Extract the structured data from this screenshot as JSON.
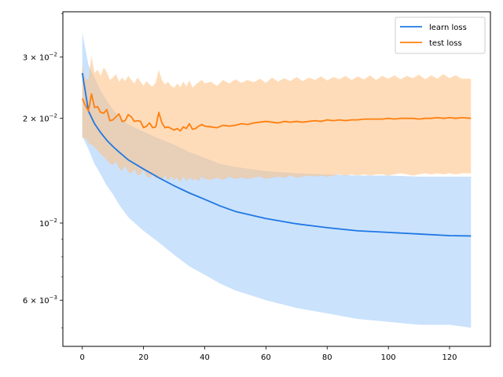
{
  "chart_data": {
    "type": "line",
    "title": "",
    "xlabel": "",
    "ylabel": "",
    "y_scale": "log",
    "xlim": [
      -6.35,
      133.35
    ],
    "ylim": [
      0.00442,
      0.0405
    ],
    "x_ticks": [
      0,
      20,
      40,
      60,
      80,
      100,
      120
    ],
    "x_tick_labels": [
      "0",
      "20",
      "40",
      "60",
      "80",
      "100",
      "120"
    ],
    "y_ticks": [
      0.006,
      0.01,
      0.02,
      0.03
    ],
    "y_tick_labels": [
      {
        "base": "6 × 10",
        "exp": "−3"
      },
      {
        "base": "10",
        "exp": "−2"
      },
      {
        "base": "2 × 10",
        "exp": "−2"
      },
      {
        "base": "3 × 10",
        "exp": "−2"
      }
    ],
    "grid": false,
    "legend_position": "top-right",
    "series": [
      {
        "name": "learn loss",
        "color": "#1f77e4",
        "band_color": "#9ecbfa",
        "x": [
          0,
          2,
          4,
          6,
          8,
          10,
          12,
          15,
          20,
          25,
          30,
          35,
          40,
          45,
          50,
          60,
          70,
          80,
          90,
          100,
          110,
          120,
          127
        ],
        "y": [
          0.027,
          0.021,
          0.0193,
          0.0182,
          0.0173,
          0.0166,
          0.016,
          0.0152,
          0.0143,
          0.0135,
          0.0128,
          0.0122,
          0.0117,
          0.0112,
          0.0108,
          0.0103,
          0.00995,
          0.0097,
          0.0095,
          0.0094,
          0.0093,
          0.0092,
          0.00918
        ],
        "lower": [
          0.0178,
          0.0163,
          0.0148,
          0.0138,
          0.0128,
          0.0121,
          0.0113,
          0.0104,
          0.0095,
          0.0088,
          0.0081,
          0.0075,
          0.0071,
          0.0067,
          0.0064,
          0.006,
          0.0057,
          0.0055,
          0.0053,
          0.0052,
          0.0051,
          0.0051,
          0.005
        ],
        "upper": [
          0.0352,
          0.0285,
          0.0262,
          0.024,
          0.0225,
          0.0212,
          0.0203,
          0.0192,
          0.0183,
          0.0175,
          0.0168,
          0.016,
          0.0154,
          0.0148,
          0.0145,
          0.0141,
          0.0139,
          0.0138,
          0.0137,
          0.0137,
          0.0136,
          0.0136,
          0.0136
        ]
      },
      {
        "name": "test loss",
        "color": "#ff7f0e",
        "band_color": "#ffbf80",
        "x": [
          0,
          1,
          2,
          3,
          4,
          5,
          6,
          7,
          8,
          9,
          10,
          11,
          12,
          13,
          14,
          15,
          16,
          17,
          18,
          19,
          20,
          21,
          22,
          23,
          24,
          25,
          26,
          27,
          28,
          29,
          30,
          31,
          32,
          33,
          34,
          35,
          36,
          37,
          38,
          39,
          40,
          42,
          44,
          46,
          48,
          50,
          52,
          54,
          56,
          58,
          60,
          62,
          64,
          66,
          68,
          70,
          72,
          74,
          76,
          78,
          80,
          82,
          84,
          86,
          88,
          90,
          92,
          94,
          96,
          98,
          100,
          102,
          104,
          106,
          108,
          110,
          112,
          114,
          116,
          118,
          120,
          122,
          124,
          127
        ],
        "y": [
          0.0228,
          0.0218,
          0.021,
          0.0235,
          0.0215,
          0.0216,
          0.0208,
          0.0207,
          0.0212,
          0.0197,
          0.0198,
          0.0202,
          0.0206,
          0.0196,
          0.0197,
          0.0205,
          0.0202,
          0.0196,
          0.0197,
          0.0196,
          0.0188,
          0.019,
          0.0194,
          0.0188,
          0.0189,
          0.0208,
          0.0194,
          0.0188,
          0.0189,
          0.0187,
          0.0185,
          0.0187,
          0.0184,
          0.0189,
          0.0187,
          0.0193,
          0.0186,
          0.0187,
          0.019,
          0.0192,
          0.019,
          0.0189,
          0.0188,
          0.0191,
          0.019,
          0.0191,
          0.0193,
          0.0192,
          0.0194,
          0.0195,
          0.0196,
          0.0195,
          0.0194,
          0.0196,
          0.0195,
          0.0196,
          0.0195,
          0.0196,
          0.0197,
          0.0196,
          0.0198,
          0.0197,
          0.0198,
          0.0197,
          0.0198,
          0.0198,
          0.0199,
          0.0199,
          0.0199,
          0.0199,
          0.02,
          0.0199,
          0.02,
          0.02,
          0.02,
          0.0199,
          0.02,
          0.02,
          0.0201,
          0.02,
          0.0201,
          0.02,
          0.0201,
          0.02
        ],
        "lower": [
          0.0175,
          0.0176,
          0.017,
          0.0168,
          0.0165,
          0.0162,
          0.0158,
          0.0155,
          0.0152,
          0.0148,
          0.0147,
          0.015,
          0.0144,
          0.0141,
          0.0146,
          0.014,
          0.0139,
          0.0143,
          0.0137,
          0.0138,
          0.0142,
          0.0136,
          0.0135,
          0.0138,
          0.0134,
          0.0136,
          0.0133,
          0.0137,
          0.0132,
          0.0136,
          0.0133,
          0.0135,
          0.0131,
          0.0136,
          0.0132,
          0.0135,
          0.0133,
          0.0134,
          0.0132,
          0.0136,
          0.0134,
          0.0133,
          0.0135,
          0.0133,
          0.0136,
          0.0134,
          0.0135,
          0.0134,
          0.0135,
          0.0136,
          0.0134,
          0.0135,
          0.0136,
          0.0135,
          0.0137,
          0.0135,
          0.0136,
          0.0137,
          0.0136,
          0.0137,
          0.0136,
          0.0137,
          0.0138,
          0.0137,
          0.0138,
          0.0137,
          0.0138,
          0.0137,
          0.0138,
          0.0138,
          0.0137,
          0.0138,
          0.0139,
          0.0138,
          0.0137,
          0.0138,
          0.0139,
          0.0138,
          0.0139,
          0.0138,
          0.0139,
          0.0138,
          0.0139,
          0.0139
        ],
        "upper": [
          0.0285,
          0.026,
          0.0258,
          0.0303,
          0.027,
          0.0276,
          0.0265,
          0.028,
          0.0272,
          0.0258,
          0.0262,
          0.0268,
          0.0255,
          0.0262,
          0.0256,
          0.0265,
          0.0258,
          0.0252,
          0.0262,
          0.0255,
          0.0248,
          0.0256,
          0.025,
          0.0247,
          0.0254,
          0.0276,
          0.0258,
          0.025,
          0.0255,
          0.0248,
          0.0245,
          0.0252,
          0.0246,
          0.0255,
          0.0247,
          0.0257,
          0.0245,
          0.025,
          0.0254,
          0.0258,
          0.0252,
          0.0255,
          0.0248,
          0.0258,
          0.0252,
          0.0259,
          0.0253,
          0.0258,
          0.0254,
          0.026,
          0.0253,
          0.0262,
          0.0255,
          0.0261,
          0.0256,
          0.0263,
          0.0256,
          0.0262,
          0.0258,
          0.0264,
          0.0257,
          0.0263,
          0.0259,
          0.0265,
          0.0258,
          0.0264,
          0.0259,
          0.0266,
          0.0258,
          0.0265,
          0.026,
          0.0266,
          0.0259,
          0.0265,
          0.0261,
          0.0267,
          0.0259,
          0.0266,
          0.026,
          0.0268,
          0.0261,
          0.0266,
          0.026,
          0.026
        ]
      }
    ]
  }
}
